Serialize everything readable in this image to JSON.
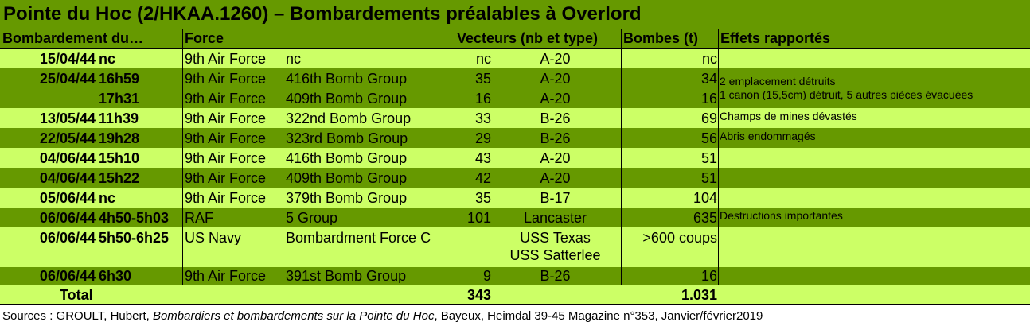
{
  "title": "Pointe du Hoc (2/HKAA.1260) – Bombardements préalables à Overlord",
  "headers": {
    "bombardement": "Bombardement du…",
    "force": "Force",
    "vecteurs": "Vecteurs (nb et type)",
    "bombes": "Bombes (t)",
    "effets": "Effets rapportés"
  },
  "rows": [
    {
      "date": "15/04/44",
      "time": "nc",
      "force": "9th Air Force",
      "unit": "nc",
      "nb": "nc",
      "type": "A-20",
      "bombs": "nc",
      "effect": ""
    },
    {
      "date": "25/04/44",
      "time": "16h59",
      "force": "9th Air Force",
      "unit": "416th Bomb Group",
      "nb": "35",
      "type": "A-20",
      "bombs": "34",
      "effect": "2 emplacement détruits"
    },
    {
      "date": "",
      "time": "17h31",
      "force": "9th Air Force",
      "unit": "409th Bomb Group",
      "nb": "16",
      "type": "A-20",
      "bombs": "16",
      "effect": "1 canon (15,5cm) détruit, 5 autres pièces évacuées"
    },
    {
      "date": "13/05/44",
      "time": "11h39",
      "force": "9th Air Force",
      "unit": "322nd Bomb Group",
      "nb": "33",
      "type": "B-26",
      "bombs": "69",
      "effect": "Champs de mines dévastés"
    },
    {
      "date": "22/05/44",
      "time": "19h28",
      "force": "9th Air Force",
      "unit": "323rd Bomb Group",
      "nb": "29",
      "type": "B-26",
      "bombs": "56",
      "effect": "Abris endommagés"
    },
    {
      "date": "04/06/44",
      "time": "15h10",
      "force": "9th Air Force",
      "unit": "416th Bomb Group",
      "nb": "43",
      "type": "A-20",
      "bombs": "51",
      "effect": ""
    },
    {
      "date": "04/06/44",
      "time": "15h22",
      "force": "9th Air Force",
      "unit": "409th Bomb Group",
      "nb": "42",
      "type": "A-20",
      "bombs": "51",
      "effect": ""
    },
    {
      "date": "05/06/44",
      "time": "nc",
      "force": "9th Air Force",
      "unit": "379th Bomb Group",
      "nb": "35",
      "type": "B-17",
      "bombs": "104",
      "effect": ""
    },
    {
      "date": "06/06/44",
      "time": "4h50-5h03",
      "force": "RAF",
      "unit": "5 Group",
      "nb": "101",
      "type": "Lancaster",
      "bombs": "635",
      "effect": "Destructions importantes"
    },
    {
      "date": "06/06/44",
      "time": "5h50-6h25",
      "force": "US Navy",
      "unit": "Bombardment Force C",
      "nb": "",
      "type": "USS Texas",
      "type2": "USS Satterlee",
      "bombs": ">600 coups",
      "effect": ""
    },
    {
      "date": "06/06/44",
      "time": "6h30",
      "force": "9th Air Force",
      "unit": "391st Bomb Group",
      "nb": "9",
      "type": "B-26",
      "bombs": "16",
      "effect": ""
    }
  ],
  "total": {
    "label": "Total",
    "nb": "343",
    "bombs": "1.031"
  },
  "source": {
    "prefix": "Sources : GROULT, Hubert, ",
    "work": "Bombardiers et bombardements sur la Pointe du Hoc",
    "suffix": ", Bayeux, Heimdal 39-45 Magazine n°353, Janvier/février2019"
  },
  "colors": {
    "dark": "#669900",
    "light": "#ccff66",
    "total": "#ccff66"
  }
}
